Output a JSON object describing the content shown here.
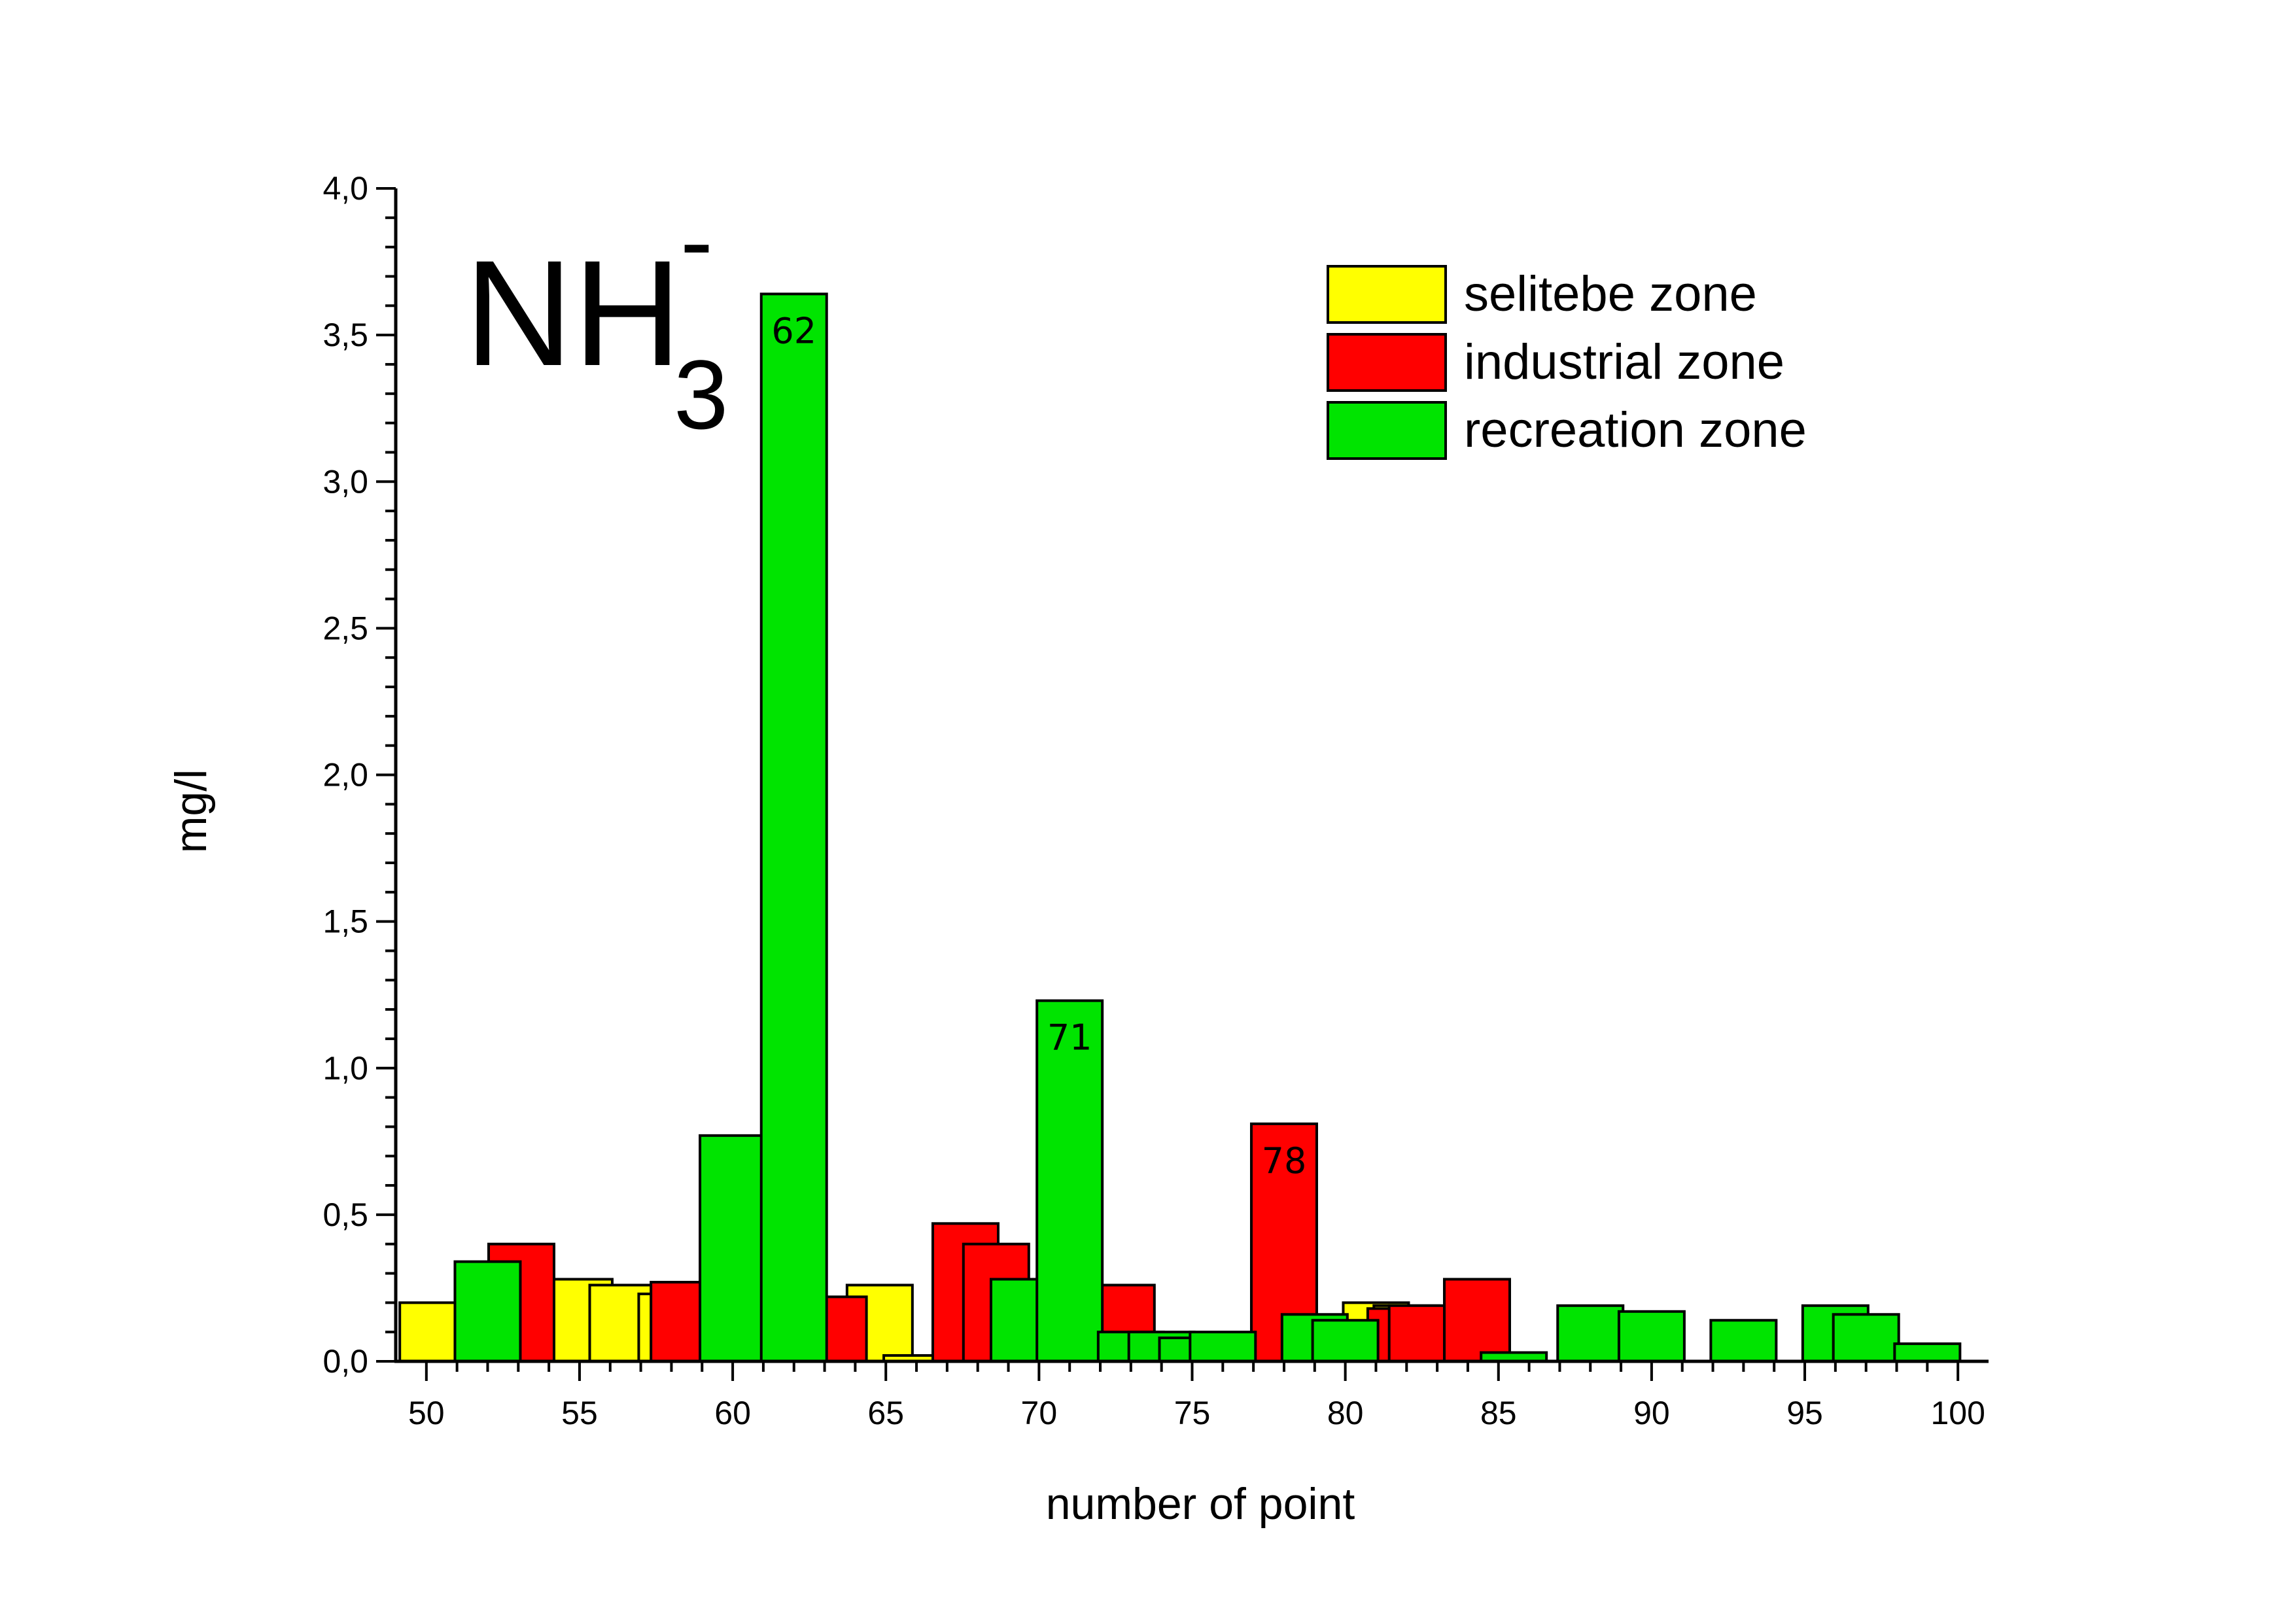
{
  "chart_data": {
    "type": "bar",
    "title_main": "NH",
    "title_sub": "3",
    "title_sup": "-",
    "xlabel": "number of point",
    "ylabel": "mg/l",
    "xlim": [
      49,
      101
    ],
    "ylim": [
      0,
      4.0
    ],
    "x_ticks": [
      "50",
      "55",
      "60",
      "65",
      "70",
      "75",
      "80",
      "85",
      "90",
      "95",
      "100"
    ],
    "y_ticks": [
      "0,0",
      "0,5",
      "1,0",
      "1,5",
      "2,0",
      "2,5",
      "3,0",
      "3,5",
      "4,0"
    ],
    "legend_position": "top-right",
    "grid": false,
    "colors": {
      "selitebe": "#ffff00",
      "industrial": "#ff0000",
      "recreation": "#00e400"
    },
    "series": [
      {
        "name": "selitebe zone",
        "key": "selitebe",
        "points": [
          {
            "x": 50.2,
            "y": 0.2
          },
          {
            "x": 55.0,
            "y": 0.28
          },
          {
            "x": 56.4,
            "y": 0.26
          },
          {
            "x": 58.0,
            "y": 0.23
          },
          {
            "x": 64.8,
            "y": 0.26
          },
          {
            "x": 66.0,
            "y": 0.02
          },
          {
            "x": 81.0,
            "y": 0.2
          },
          {
            "x": 82.0,
            "y": 0.19
          }
        ]
      },
      {
        "name": "industrial zone",
        "key": "industrial",
        "points": [
          {
            "x": 53.1,
            "y": 0.4
          },
          {
            "x": 58.4,
            "y": 0.27
          },
          {
            "x": 63.3,
            "y": 0.22
          },
          {
            "x": 67.6,
            "y": 0.47
          },
          {
            "x": 68.6,
            "y": 0.4
          },
          {
            "x": 72.7,
            "y": 0.26
          },
          {
            "x": 78.0,
            "y": 0.81,
            "label": "78"
          },
          {
            "x": 81.8,
            "y": 0.18
          },
          {
            "x": 82.5,
            "y": 0.19
          },
          {
            "x": 84.3,
            "y": 0.28
          }
        ]
      },
      {
        "name": "recreation zone",
        "key": "recreation",
        "points": [
          {
            "x": 52.0,
            "y": 0.34
          },
          {
            "x": 60.0,
            "y": 0.77
          },
          {
            "x": 62.0,
            "y": 3.64,
            "label": "62"
          },
          {
            "x": 69.5,
            "y": 0.28
          },
          {
            "x": 71.0,
            "y": 1.23,
            "label": "71"
          },
          {
            "x": 73.0,
            "y": 0.1
          },
          {
            "x": 74.0,
            "y": 0.1
          },
          {
            "x": 75.0,
            "y": 0.08
          },
          {
            "x": 76.0,
            "y": 0.1
          },
          {
            "x": 79.0,
            "y": 0.16
          },
          {
            "x": 80.0,
            "y": 0.14
          },
          {
            "x": 85.5,
            "y": 0.03
          },
          {
            "x": 88.0,
            "y": 0.19
          },
          {
            "x": 90.0,
            "y": 0.17
          },
          {
            "x": 93.0,
            "y": 0.14
          },
          {
            "x": 96.0,
            "y": 0.19
          },
          {
            "x": 97.0,
            "y": 0.16
          },
          {
            "x": 99.0,
            "y": 0.06
          }
        ]
      }
    ]
  }
}
